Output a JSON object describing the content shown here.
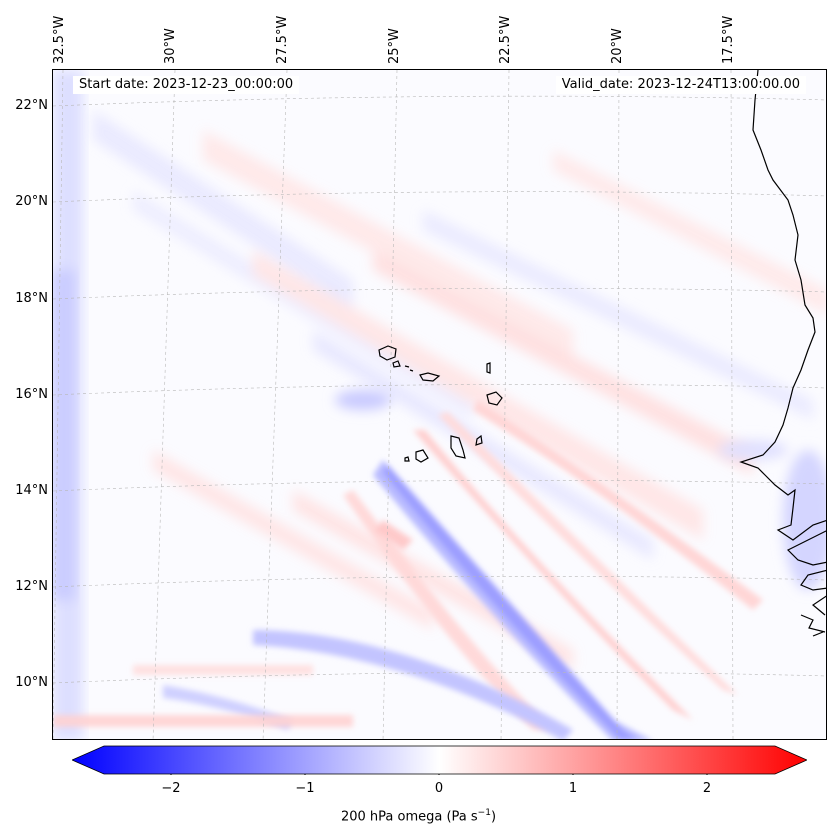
{
  "map": {
    "region": "Cape Verde / West Africa Atlantic",
    "longitude_labels": [
      "32.5°W",
      "30°W",
      "27.5°W",
      "25°W",
      "22.5°W",
      "20°W",
      "17.5°W"
    ],
    "latitude_labels": [
      "22°N",
      "20°N",
      "18°N",
      "16°N",
      "14°N",
      "12°N",
      "10°N"
    ],
    "start_date": "Start date: 2023-12-23_00:00:00",
    "valid_date": "Valid_date: 2023-12-24T13:00:00.00"
  },
  "colorbar": {
    "ticks": [
      "−2",
      "−1",
      "0",
      "1",
      "2"
    ],
    "label": "200 hPa omega (Pa s",
    "label_exponent": "−1",
    "label_close": ")",
    "min_color": "#0000ff",
    "mid_color": "#ffffff",
    "max_color": "#ff0000"
  }
}
